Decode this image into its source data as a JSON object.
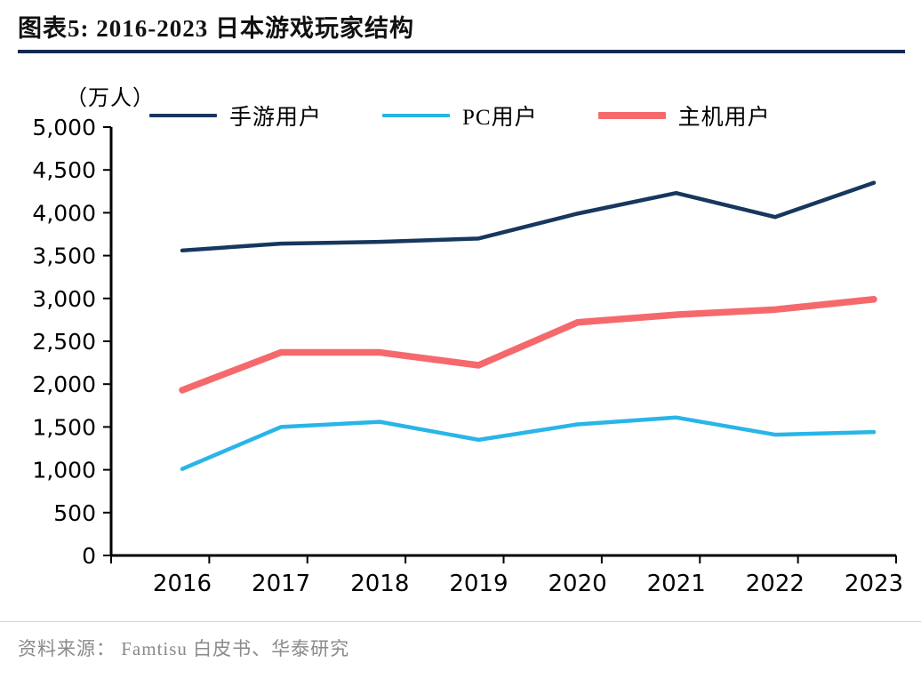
{
  "header": {
    "title": "图表5:  2016-2023 日本游戏玩家结构"
  },
  "footer": {
    "source": "资料来源： Famtisu 白皮书、华泰研究"
  },
  "chart_data": {
    "type": "line",
    "title": "2016-2023 日本游戏玩家结构",
    "unit_label": "（万人）",
    "categories": [
      "2016",
      "2017",
      "2018",
      "2019",
      "2020",
      "2021",
      "2022",
      "2023"
    ],
    "series": [
      {
        "name": "手游用户",
        "color": "#17375e",
        "thickness": 4.5,
        "values": [
          3560,
          3640,
          3660,
          3700,
          3990,
          4230,
          3950,
          4350
        ]
      },
      {
        "name": "PC用户",
        "color": "#29b5e8",
        "thickness": 4.5,
        "values": [
          1010,
          1500,
          1560,
          1350,
          1530,
          1610,
          1410,
          1440
        ]
      },
      {
        "name": "主机用户",
        "color": "#f5696d",
        "thickness": 7.5,
        "values": [
          1930,
          2370,
          2370,
          2220,
          2720,
          2810,
          2870,
          2990
        ]
      }
    ],
    "ylim": [
      0,
      5000
    ],
    "ytick_step": 500,
    "xlabel": "",
    "ylabel": "万人",
    "grid": false,
    "legend_position": "top"
  }
}
